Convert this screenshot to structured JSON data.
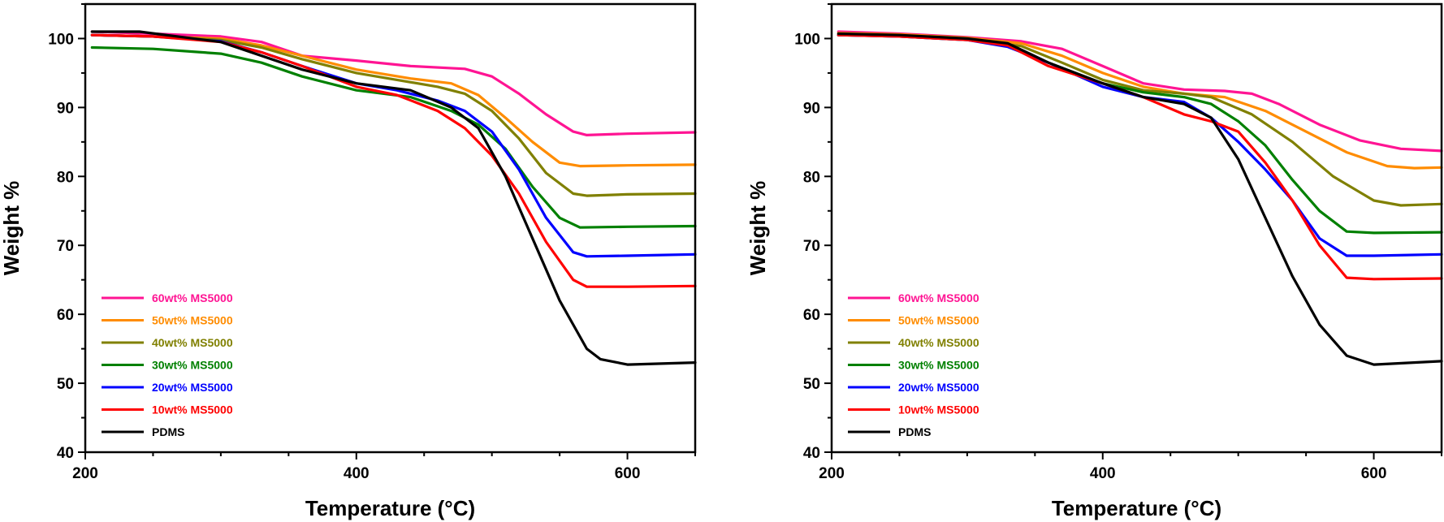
{
  "chart_data": [
    {
      "type": "line",
      "title": "",
      "xlabel": "Temperature (°C)",
      "ylabel": "Weight %",
      "xlim": [
        200,
        650
      ],
      "ylim": [
        40,
        105
      ],
      "xticks": [
        200,
        400,
        600
      ],
      "yticks": [
        40,
        50,
        60,
        70,
        80,
        90,
        100
      ],
      "legend_position": "bottom-left",
      "series": [
        {
          "name": "60wt% MS5000",
          "color": "#ff1493",
          "x": [
            205,
            250,
            300,
            330,
            360,
            400,
            440,
            480,
            500,
            520,
            540,
            560,
            570,
            600,
            650
          ],
          "y": [
            101,
            100.7,
            100.3,
            99.5,
            97.5,
            96.8,
            96,
            95.6,
            94.5,
            92,
            89,
            86.5,
            86,
            86.2,
            86.4
          ]
        },
        {
          "name": "50wt% MS5000",
          "color": "#ff8c00",
          "x": [
            205,
            250,
            300,
            330,
            360,
            400,
            440,
            470,
            490,
            510,
            530,
            550,
            565,
            600,
            650
          ],
          "y": [
            100.5,
            100.3,
            100,
            99,
            97.5,
            95.5,
            94.2,
            93.5,
            91.8,
            88.5,
            85,
            82,
            81.5,
            81.6,
            81.7
          ]
        },
        {
          "name": "40wt% MS5000",
          "color": "#808000",
          "x": [
            205,
            250,
            300,
            330,
            360,
            400,
            430,
            460,
            480,
            500,
            520,
            540,
            560,
            570,
            600,
            650
          ],
          "y": [
            100.5,
            100.3,
            99.8,
            98.7,
            97,
            95,
            94,
            93,
            92,
            89.5,
            85.5,
            80.5,
            77.5,
            77.2,
            77.4,
            77.5
          ]
        },
        {
          "name": "30wt% MS5000",
          "color": "#008000",
          "x": [
            205,
            250,
            300,
            330,
            360,
            400,
            440,
            470,
            490,
            510,
            530,
            550,
            565,
            600,
            650
          ],
          "y": [
            98.7,
            98.5,
            97.8,
            96.5,
            94.5,
            92.5,
            91.5,
            89.5,
            87.5,
            84,
            78.5,
            74,
            72.6,
            72.7,
            72.8
          ]
        },
        {
          "name": "20wt% MS5000",
          "color": "#0000ff",
          "x": [
            205,
            250,
            300,
            330,
            360,
            400,
            430,
            460,
            480,
            500,
            520,
            540,
            560,
            570,
            600,
            650
          ],
          "y": [
            100.5,
            100.3,
            99.6,
            98,
            96,
            93.5,
            92.5,
            91,
            89.5,
            86.5,
            81,
            74,
            69,
            68.4,
            68.5,
            68.7
          ]
        },
        {
          "name": "10wt% MS5000",
          "color": "#ff0000",
          "x": [
            205,
            250,
            300,
            330,
            360,
            400,
            430,
            460,
            480,
            500,
            520,
            540,
            560,
            570,
            600,
            650
          ],
          "y": [
            100.5,
            100.3,
            99.5,
            98,
            96,
            93,
            91.8,
            89.5,
            87,
            83,
            77.5,
            70.5,
            65,
            64,
            64,
            64.1
          ]
        },
        {
          "name": "PDMS",
          "color": "#000000",
          "x": [
            205,
            240,
            300,
            330,
            360,
            400,
            440,
            470,
            490,
            510,
            530,
            550,
            570,
            580,
            600,
            650
          ],
          "y": [
            101,
            101,
            99.5,
            97.5,
            95.5,
            93.5,
            92.5,
            90,
            87,
            80,
            71,
            62,
            55,
            53.5,
            52.7,
            53
          ]
        }
      ]
    },
    {
      "type": "line",
      "title": "",
      "xlabel": "Temperature (°C)",
      "ylabel": "Weight %",
      "xlim": [
        200,
        650
      ],
      "ylim": [
        40,
        105
      ],
      "xticks": [
        200,
        400,
        600
      ],
      "yticks": [
        40,
        50,
        60,
        70,
        80,
        90,
        100
      ],
      "legend_position": "bottom-left",
      "series": [
        {
          "name": "60wt% MS5000",
          "color": "#ff1493",
          "x": [
            205,
            250,
            300,
            340,
            370,
            400,
            430,
            460,
            490,
            510,
            530,
            560,
            590,
            620,
            650
          ],
          "y": [
            101,
            100.7,
            100.2,
            99.6,
            98.5,
            96,
            93.5,
            92.6,
            92.4,
            92,
            90.5,
            87.5,
            85.2,
            84,
            83.7
          ]
        },
        {
          "name": "50wt% MS5000",
          "color": "#ff8c00",
          "x": [
            205,
            250,
            300,
            340,
            370,
            400,
            430,
            460,
            490,
            520,
            550,
            580,
            610,
            630,
            650
          ],
          "y": [
            100.8,
            100.6,
            100.1,
            99.3,
            97.5,
            95,
            93,
            92,
            91.5,
            89.5,
            86.5,
            83.5,
            81.5,
            81.2,
            81.3
          ]
        },
        {
          "name": "40wt% MS5000",
          "color": "#808000",
          "x": [
            205,
            250,
            300,
            340,
            370,
            400,
            430,
            460,
            480,
            510,
            540,
            570,
            600,
            620,
            650
          ],
          "y": [
            100.5,
            100.4,
            99.9,
            98.9,
            96.5,
            94,
            92.5,
            92,
            91.5,
            89,
            85,
            80,
            76.5,
            75.8,
            76
          ]
        },
        {
          "name": "30wt% MS5000",
          "color": "#008000",
          "x": [
            205,
            250,
            300,
            330,
            360,
            400,
            430,
            460,
            480,
            500,
            520,
            540,
            560,
            580,
            600,
            650
          ],
          "y": [
            100.5,
            100.3,
            99.8,
            99,
            96.5,
            93.5,
            92.2,
            91.5,
            90.5,
            88,
            84.5,
            79.5,
            75,
            72,
            71.8,
            71.9
          ]
        },
        {
          "name": "20wt% MS5000",
          "color": "#0000ff",
          "x": [
            205,
            250,
            300,
            330,
            360,
            400,
            430,
            460,
            480,
            500,
            520,
            540,
            560,
            580,
            600,
            650
          ],
          "y": [
            100.5,
            100.3,
            99.8,
            98.8,
            96.5,
            93,
            91.5,
            90.8,
            88.5,
            85,
            81,
            76.5,
            71,
            68.5,
            68.5,
            68.7
          ]
        },
        {
          "name": "10wt% MS5000",
          "color": "#ff0000",
          "x": [
            205,
            250,
            300,
            330,
            360,
            400,
            430,
            460,
            480,
            500,
            520,
            540,
            560,
            580,
            600,
            650
          ],
          "y": [
            100.5,
            100.3,
            99.8,
            99,
            96,
            93.5,
            91.5,
            89,
            88,
            86.5,
            82,
            76.5,
            70,
            65.3,
            65.1,
            65.2
          ]
        },
        {
          "name": "PDMS",
          "color": "#000000",
          "x": [
            205,
            250,
            300,
            330,
            360,
            400,
            430,
            460,
            480,
            500,
            520,
            540,
            560,
            580,
            600,
            650
          ],
          "y": [
            100.7,
            100.5,
            100,
            99.3,
            96.5,
            93.5,
            91.5,
            90.5,
            88.5,
            82.5,
            74,
            65.5,
            58.5,
            54,
            52.7,
            53.2
          ]
        }
      ]
    }
  ]
}
